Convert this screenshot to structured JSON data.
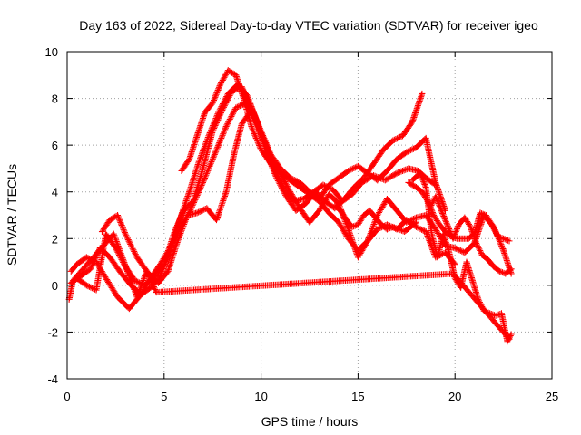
{
  "chart_data": {
    "type": "scatter",
    "title": "Day 163 of 2022, Sidereal Day-to-day VTEC variation (SDTVAR) for receiver igeo",
    "xlabel": "GPS time / hours",
    "ylabel": "SDTVAR / TECUs",
    "xlim": [
      0,
      25
    ],
    "ylim": [
      -4,
      10
    ],
    "x_ticks": [
      0,
      5,
      10,
      15,
      20,
      25
    ],
    "y_ticks": [
      -4,
      -2,
      0,
      2,
      4,
      6,
      8,
      10
    ],
    "x_tick_labels": [
      "0",
      "5",
      "10",
      "15",
      "20",
      "25"
    ],
    "y_tick_labels": [
      "-4",
      "-2",
      "0",
      "2",
      "4",
      "6",
      "8",
      "10"
    ],
    "grid": true,
    "marker": "+",
    "color": "#ff0000",
    "series": [
      {
        "name": "track-1",
        "x": [
          0.2,
          0.5,
          1.0,
          1.5,
          2.0,
          2.6,
          3.2,
          3.8,
          4.3,
          4.8,
          5.3,
          5.8,
          6.4,
          7.0,
          7.6,
          8.2,
          8.7,
          9.2,
          9.7,
          10.2,
          10.7,
          11.2,
          11.7,
          12.2,
          12.7,
          13.2,
          13.7,
          14.2,
          14.7,
          15.2,
          15.8,
          16.4,
          17.0,
          17.6,
          18.1,
          18.5,
          19.0
        ],
        "y": [
          0.6,
          0.9,
          1.2,
          1.0,
          0.3,
          -0.5,
          -1.0,
          -0.4,
          0.3,
          0.9,
          1.6,
          2.4,
          3.3,
          4.4,
          5.6,
          6.8,
          7.6,
          7.8,
          7.1,
          6.0,
          4.9,
          4.1,
          3.6,
          3.7,
          4.0,
          4.3,
          4.1,
          3.6,
          3.9,
          4.4,
          4.7,
          4.5,
          4.8,
          5.0,
          4.9,
          4.6,
          4.3
        ]
      },
      {
        "name": "track-2",
        "x": [
          0.2,
          0.7,
          1.2,
          1.7,
          2.2,
          2.8,
          3.3,
          3.8,
          4.3,
          4.8,
          5.3,
          5.8,
          6.3,
          6.8,
          7.3,
          7.8,
          8.3,
          8.8,
          9.3,
          9.8,
          10.3,
          10.8,
          11.3,
          11.8,
          12.3,
          12.8,
          13.3,
          13.8,
          14.3,
          14.8,
          15.3,
          15.8,
          16.3,
          16.8,
          17.3,
          17.8,
          18.3
        ],
        "y": [
          0.1,
          0.4,
          0.7,
          1.6,
          1.2,
          0.5,
          0.0,
          -0.4,
          -0.1,
          0.4,
          1.4,
          2.8,
          4.0,
          5.3,
          6.4,
          7.4,
          8.2,
          8.6,
          8.1,
          7.0,
          5.6,
          4.6,
          3.8,
          3.2,
          3.5,
          4.0,
          3.6,
          3.3,
          3.7,
          4.2,
          4.6,
          5.2,
          5.8,
          6.2,
          6.4,
          7.0,
          8.2
        ]
      },
      {
        "name": "track-3",
        "x": [
          0.5,
          1.0,
          1.5,
          2.0,
          2.5,
          3.0,
          3.5,
          4.0,
          4.5,
          5.0,
          5.5,
          6.0,
          6.5,
          7.0,
          7.5,
          8.0,
          8.5,
          9.0,
          9.5,
          10.0,
          10.5,
          11.0,
          11.5,
          12.0,
          12.5,
          13.0,
          13.5,
          14.0,
          14.5,
          15.0,
          15.5,
          16.0,
          16.5,
          17.0,
          17.5,
          18.0,
          18.5,
          19.0,
          19.5
        ],
        "y": [
          0.3,
          0.0,
          -0.2,
          2.2,
          1.6,
          0.8,
          0.2,
          0.0,
          0.4,
          0.9,
          2.2,
          3.2,
          3.6,
          5.0,
          6.6,
          7.5,
          8.3,
          8.5,
          7.6,
          6.6,
          5.6,
          5.0,
          4.6,
          4.4,
          4.0,
          3.7,
          4.3,
          4.6,
          4.9,
          5.1,
          4.8,
          4.5,
          4.9,
          5.4,
          5.7,
          5.9,
          6.3,
          4.4,
          3.2
        ]
      },
      {
        "name": "track-4",
        "x": [
          1.8,
          2.2,
          2.6,
          3.0,
          3.6,
          4.2,
          4.7,
          5.2,
          5.7,
          6.2,
          6.7,
          7.2,
          7.7,
          8.2,
          8.6,
          9.0,
          9.5,
          10.0,
          10.5,
          11.0,
          11.5,
          12.0,
          12.5,
          13.0,
          13.5,
          14.0,
          14.5,
          15.0,
          15.5,
          16.0,
          16.5,
          17.0,
          17.5,
          18.0,
          18.5,
          19.0,
          19.5,
          20.0
        ],
        "y": [
          2.3,
          2.8,
          3.0,
          2.2,
          1.2,
          0.5,
          0.1,
          0.6,
          1.9,
          3.0,
          3.1,
          3.3,
          2.8,
          4.0,
          5.6,
          6.9,
          7.5,
          6.5,
          5.5,
          4.8,
          4.5,
          4.2,
          3.9,
          3.6,
          3.1,
          2.7,
          2.0,
          1.5,
          1.9,
          2.4,
          2.6,
          2.4,
          2.8,
          2.5,
          2.3,
          1.2,
          1.4,
          0.9
        ]
      },
      {
        "name": "track-5",
        "x": [
          5.9,
          6.3,
          6.7,
          7.1,
          7.5,
          7.9,
          8.3,
          8.7,
          9.1,
          9.5,
          10.0,
          10.5,
          11.0,
          11.5,
          12.0,
          12.5,
          13.0,
          13.5,
          14.0,
          14.5,
          15.0,
          15.5,
          16.0,
          16.5,
          17.0,
          17.5,
          18.0,
          18.5,
          19.0,
          19.5,
          20.0,
          20.5,
          21.0,
          21.5,
          22.0,
          22.5,
          22.9
        ],
        "y": [
          4.9,
          5.4,
          6.4,
          7.4,
          7.8,
          8.6,
          9.2,
          9.0,
          8.0,
          6.8,
          5.8,
          5.2,
          4.8,
          4.0,
          3.3,
          2.7,
          3.2,
          3.9,
          3.5,
          2.4,
          1.2,
          1.9,
          3.0,
          3.7,
          3.2,
          2.7,
          2.9,
          3.0,
          2.4,
          1.7,
          1.6,
          1.4,
          1.8,
          3.0,
          2.5,
          1.5,
          0.5
        ]
      },
      {
        "name": "track-6",
        "x": [
          17.8,
          18.2,
          18.5,
          18.8,
          19.1,
          19.4,
          19.7,
          20.0,
          20.3,
          20.6,
          20.9,
          21.2,
          21.5,
          21.8,
          22.1,
          22.4,
          22.7,
          22.9
        ],
        "y": [
          4.5,
          4.8,
          4.2,
          2.2,
          1.2,
          2.2,
          1.4,
          0.3,
          -0.1,
          1.0,
          0.2,
          -0.6,
          -1.1,
          -1.2,
          -1.3,
          -1.2,
          -2.4,
          -2.1
        ]
      },
      {
        "name": "track-7",
        "x": [
          17.6,
          18.0,
          18.3,
          18.6,
          18.9,
          19.2,
          19.5,
          19.8,
          20.1,
          20.4,
          20.7,
          21.0,
          21.3,
          21.6,
          21.9,
          22.2,
          22.5,
          22.8
        ],
        "y": [
          4.4,
          4.2,
          4.0,
          3.6,
          3.0,
          2.6,
          2.3,
          2.1,
          2.0,
          2.0,
          2.0,
          2.2,
          3.1,
          3.0,
          2.6,
          2.1,
          2.0,
          1.9
        ]
      },
      {
        "name": "track-8",
        "x": [
          18.7,
          19.0,
          19.3,
          19.6,
          19.9,
          20.2,
          20.5,
          20.8,
          21.1,
          21.4,
          21.7,
          22.0,
          22.3,
          22.6,
          22.9
        ],
        "y": [
          3.3,
          3.8,
          3.2,
          2.6,
          2.0,
          2.6,
          2.9,
          2.5,
          1.8,
          1.3,
          1.1,
          0.8,
          0.6,
          0.5,
          0.7
        ]
      },
      {
        "name": "track-9",
        "x": [
          13.8,
          14.1,
          14.4,
          14.7,
          15.0,
          15.3,
          15.6,
          15.9,
          16.2,
          16.5,
          16.8,
          17.1,
          17.4,
          17.7,
          18.0
        ],
        "y": [
          3.4,
          3.2,
          2.8,
          2.5,
          2.6,
          3.0,
          3.2,
          2.9,
          2.6,
          2.4,
          2.5,
          2.4,
          2.3,
          2.5,
          2.7
        ]
      },
      {
        "name": "track-10",
        "x": [
          0.1,
          0.3,
          2.4,
          3.6,
          4.1,
          4.6,
          19.9,
          22.8
        ],
        "y": [
          -0.6,
          0.2,
          2.2,
          -0.5,
          0.6,
          -0.3,
          0.5,
          -2.3
        ]
      }
    ]
  }
}
